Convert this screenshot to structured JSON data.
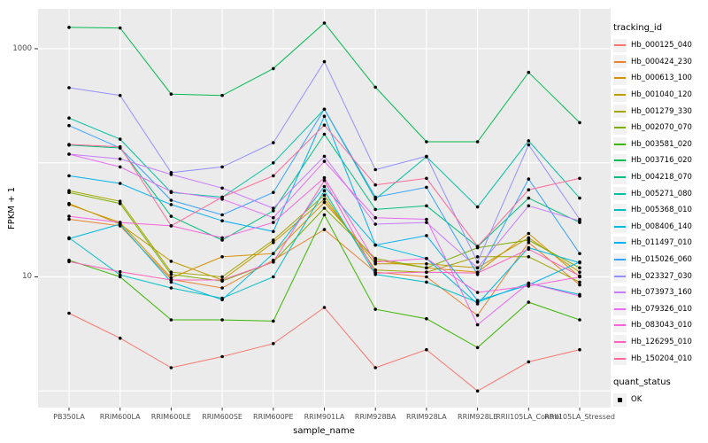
{
  "figure": {
    "y_axis_title": "FPKM + 1",
    "x_axis_title": "sample_name",
    "panel_bg": "#EBEBEB",
    "grid_color": "#FFFFFF",
    "point_color": "#000000",
    "tick_color": "#333333",
    "tick_label_color": "#4D4D4D",
    "legend_key_bg": "#F2F2F2"
  },
  "legend": {
    "tracking_title": "tracking_id",
    "quant_title": "quant_status",
    "quant_items": [
      {
        "label": "OK",
        "marker": "black-square"
      }
    ]
  },
  "chart_data": {
    "type": "line",
    "title": "",
    "xlabel": "sample_name",
    "ylabel": "FPKM + 1",
    "y_scale": "log10",
    "ylim": [
      0.85,
      2300
    ],
    "y_ticks": [
      {
        "value": 1000,
        "label": "1000"
      },
      {
        "value": 10,
        "label": "10"
      }
    ],
    "y_gridlines": [
      1,
      10,
      100,
      1000
    ],
    "grid": true,
    "legend_position": "right",
    "x_categories": [
      "PB350LA",
      "RRIM600LA",
      "RRIM600LE",
      "RRIM600SE",
      "RRIM600PE",
      "RRIM901LA",
      "RRIM928BA",
      "RRIM928LA",
      "RRIM928LE",
      "RRII105LA_Control",
      "RRII105LA_Stressed"
    ],
    "series": [
      {
        "name": "Hb_000125_040",
        "color": "#F8766D",
        "values": [
          4.8,
          2.9,
          1.6,
          2.0,
          2.6,
          5.4,
          1.6,
          2.3,
          1.0,
          1.8,
          2.3
        ]
      },
      {
        "name": "Hb_000424_230",
        "color": "#EA8331",
        "values": [
          32,
          28,
          9.5,
          8.0,
          14,
          26,
          11,
          10,
          4.6,
          20,
          8.5
        ]
      },
      {
        "name": "Hb_000613_100",
        "color": "#D89000",
        "values": [
          43,
          30,
          9.8,
          15,
          16,
          45,
          14,
          12,
          11,
          24,
          10
        ]
      },
      {
        "name": "Hb_001040_120",
        "color": "#C09B00",
        "values": [
          44,
          29,
          13.7,
          9.4,
          20,
          48,
          13,
          13,
          12,
          22,
          11
        ]
      },
      {
        "name": "Hb_001279_330",
        "color": "#A3A500",
        "values": [
          57,
          46,
          11,
          10,
          21,
          52,
          11.5,
          11,
          15,
          15,
          9
        ]
      },
      {
        "name": "Hb_002070_070",
        "color": "#7CAE00",
        "values": [
          55,
          44,
          10.5,
          9.2,
          13.5,
          40,
          14.5,
          12,
          18,
          21,
          12
        ]
      },
      {
        "name": "Hb_003581_020",
        "color": "#39B600",
        "values": [
          14,
          10,
          4.2,
          4.2,
          4.1,
          35,
          5.2,
          4.3,
          2.4,
          6.0,
          4.2
        ]
      },
      {
        "name": "Hb_003716_020",
        "color": "#00BB4E",
        "values": [
          1540,
          1520,
          400,
          390,
          670,
          1680,
          460,
          153,
          153,
          620,
          225
        ]
      },
      {
        "name": "Hb_004218_070",
        "color": "#00BF7D",
        "values": [
          143,
          135,
          34,
          21,
          38,
          178,
          39,
          42,
          18.4,
          49,
          30
        ]
      },
      {
        "name": "Hb_005271_080",
        "color": "#00C1A3",
        "values": [
          247,
          161,
          55,
          50,
          100,
          295,
          48,
          113,
          41,
          156,
          49
        ]
      },
      {
        "name": "Hb_005368_010",
        "color": "#00BFC4",
        "values": [
          22,
          10.4,
          8.0,
          6.5,
          10,
          57,
          10.5,
          9.0,
          6.0,
          8.8,
          7.0
        ]
      },
      {
        "name": "Hb_008406_140",
        "color": "#00BAE0",
        "values": [
          21.6,
          29,
          9.0,
          6.3,
          16,
          62,
          19,
          14.5,
          5.8,
          18,
          13.3
        ]
      },
      {
        "name": "Hb_011497_010",
        "color": "#00B0F6",
        "values": [
          77,
          66,
          43,
          31,
          25,
          256,
          19,
          23,
          6.2,
          8.5,
          13.5
        ]
      },
      {
        "name": "Hb_015026_060",
        "color": "#35A2FF",
        "values": [
          212,
          135,
          47,
          35,
          55,
          295,
          50,
          61,
          10.5,
          72,
          16
        ]
      },
      {
        "name": "Hb_023327_030",
        "color": "#9590FF",
        "values": [
          455,
          390,
          82,
          92,
          150,
          770,
          87,
          114,
          13.5,
          144,
          32
        ]
      },
      {
        "name": "Hb_073973_160",
        "color": "#C77CFF",
        "values": [
          119,
          108,
          79,
          60,
          40,
          114,
          29,
          30,
          12,
          42,
          31
        ]
      },
      {
        "name": "Hb_079326_010",
        "color": "#E76BF3",
        "values": [
          119,
          92,
          56,
          48,
          33,
          103,
          33,
          32,
          3.8,
          8.8,
          6.8
        ]
      },
      {
        "name": "Hb_083043_010",
        "color": "#FA62DB",
        "values": [
          34,
          30,
          28,
          22,
          30,
          74,
          13.5,
          14.5,
          7.3,
          8.3,
          10
        ]
      },
      {
        "name": "Hb_126295_010",
        "color": "#FF62BC",
        "values": [
          13.6,
          11.1,
          9.4,
          9.4,
          13.5,
          70,
          10.8,
          11,
          10.8,
          17.5,
          10.2
        ]
      },
      {
        "name": "Hb_150204_010",
        "color": "#FF6A98",
        "values": [
          145,
          138,
          28,
          50,
          77,
          214,
          64,
          73,
          18.5,
          58,
          73
        ]
      }
    ],
    "quant_status_legend": {
      "title": "quant_status",
      "entries": [
        "OK"
      ]
    }
  }
}
